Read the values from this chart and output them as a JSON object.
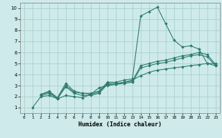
{
  "background_color": "#ceeaea",
  "grid_color": "#aacfcf",
  "line_color": "#2d7a6e",
  "xlabel": "Humidex (Indice chaleur)",
  "xlim": [
    -0.5,
    23.5
  ],
  "ylim": [
    0.5,
    10.5
  ],
  "xticks": [
    0,
    1,
    2,
    3,
    4,
    5,
    6,
    7,
    8,
    9,
    10,
    11,
    12,
    13,
    14,
    15,
    16,
    17,
    18,
    19,
    20,
    21,
    22,
    23
  ],
  "yticks": [
    1,
    2,
    3,
    4,
    5,
    6,
    7,
    8,
    9,
    10
  ],
  "lines": [
    {
      "x": [
        2,
        3,
        4,
        5,
        6,
        7,
        8,
        9,
        10,
        11,
        12,
        13,
        14,
        15,
        16,
        17,
        18,
        19,
        20,
        21,
        22,
        23
      ],
      "y": [
        2.2,
        2.5,
        1.9,
        3.2,
        2.5,
        2.3,
        2.3,
        2.5,
        3.3,
        3.3,
        3.5,
        3.6,
        9.3,
        9.7,
        10.1,
        8.6,
        7.1,
        6.5,
        6.6,
        6.3,
        5.0,
        5.0
      ]
    },
    {
      "x": [
        2,
        3,
        4,
        5,
        6,
        7,
        8,
        9,
        10,
        11,
        12,
        13,
        14,
        15,
        16,
        17,
        18,
        19,
        20,
        21,
        22,
        23
      ],
      "y": [
        2.2,
        2.4,
        1.9,
        3.0,
        2.4,
        2.3,
        2.2,
        2.4,
        3.2,
        3.2,
        3.3,
        3.4,
        4.8,
        5.0,
        5.2,
        5.3,
        5.5,
        5.7,
        5.8,
        6.0,
        5.8,
        4.9
      ]
    },
    {
      "x": [
        2,
        3,
        4,
        5,
        6,
        7,
        8,
        9,
        10,
        11,
        12,
        13,
        14,
        15,
        16,
        17,
        18,
        19,
        20,
        21,
        22,
        23
      ],
      "y": [
        2.1,
        2.3,
        1.8,
        2.9,
        2.3,
        2.1,
        2.1,
        2.3,
        3.1,
        3.1,
        3.2,
        3.3,
        4.6,
        4.8,
        5.0,
        5.1,
        5.3,
        5.5,
        5.7,
        5.8,
        5.6,
        4.8
      ]
    },
    {
      "x": [
        1,
        2,
        3,
        4,
        5,
        6,
        7,
        8,
        9,
        10,
        11,
        12,
        13,
        14,
        15,
        16,
        17,
        18,
        19,
        20,
        21,
        22,
        23
      ],
      "y": [
        1.0,
        2.0,
        2.1,
        1.8,
        2.1,
        2.0,
        1.9,
        2.2,
        2.8,
        3.0,
        3.1,
        3.3,
        3.5,
        3.9,
        4.2,
        4.4,
        4.5,
        4.6,
        4.7,
        4.8,
        4.9,
        5.0,
        4.8
      ]
    }
  ]
}
